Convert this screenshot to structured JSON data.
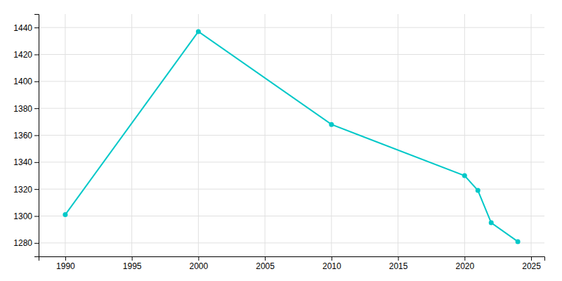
{
  "chart_data": {
    "type": "line",
    "x": [
      1990,
      2000,
      2010,
      2020,
      2021,
      2022,
      2024
    ],
    "values": [
      1301,
      1437,
      1368,
      1330,
      1319,
      1295,
      1281
    ],
    "color": "#00C8C8",
    "marker": "circle",
    "xlim": [
      1988,
      2026
    ],
    "ylim": [
      1270,
      1450
    ],
    "xticks": [
      1990,
      1995,
      2000,
      2005,
      2010,
      2015,
      2020,
      2025
    ],
    "yticks": [
      1280,
      1300,
      1320,
      1340,
      1360,
      1380,
      1400,
      1420,
      1440
    ],
    "grid": true
  }
}
